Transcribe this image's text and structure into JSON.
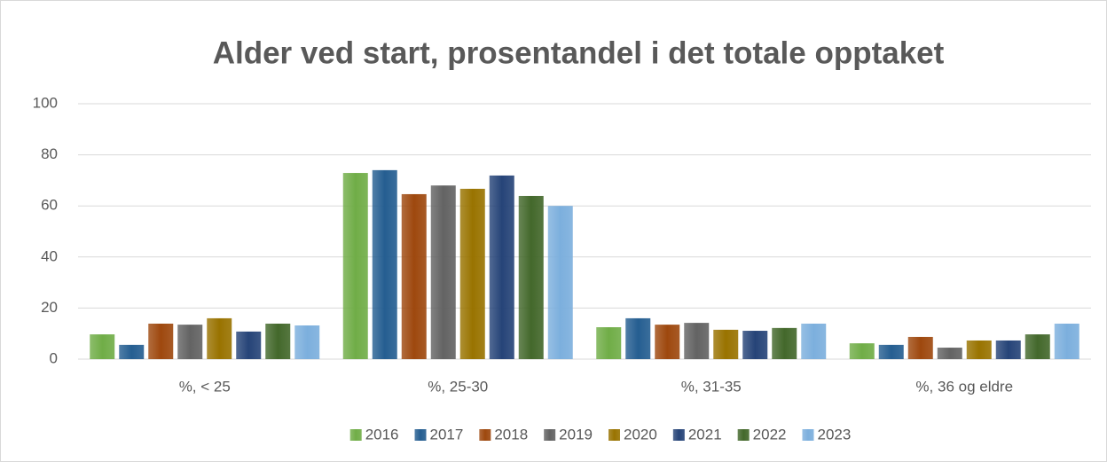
{
  "chart_data": {
    "type": "bar",
    "title": "Alder ved start, prosentandel i det totale opptaket",
    "categories": [
      "%, < 25",
      "%, 25-30",
      "%, 31-35",
      "%, 36 og eldre"
    ],
    "series": [
      {
        "name": "2016",
        "color": "#70ad47",
        "values": [
          9.7,
          72.9,
          12.5,
          6.2
        ]
      },
      {
        "name": "2017",
        "color": "#255e91",
        "values": [
          5.6,
          74,
          16,
          5.6
        ]
      },
      {
        "name": "2018",
        "color": "#9e480e",
        "values": [
          13.9,
          64.6,
          13.5,
          8.7
        ]
      },
      {
        "name": "2019",
        "color": "#636363",
        "values": [
          13.5,
          68,
          14.2,
          4.5
        ]
      },
      {
        "name": "2020",
        "color": "#997300",
        "values": [
          16,
          66.7,
          11.5,
          7.3
        ]
      },
      {
        "name": "2021",
        "color": "#264478",
        "values": [
          10.8,
          71.9,
          11.1,
          7.3
        ]
      },
      {
        "name": "2022",
        "color": "#43682b",
        "values": [
          13.9,
          63.9,
          12.2,
          9.7
        ]
      },
      {
        "name": "2023",
        "color": "#7cafdd",
        "values": [
          13.2,
          60,
          13.9,
          13.9
        ]
      }
    ],
    "ylim": [
      0,
      100
    ],
    "yticks": [
      0,
      20,
      40,
      60,
      80,
      100
    ],
    "grid": true,
    "legend": "bottom"
  }
}
